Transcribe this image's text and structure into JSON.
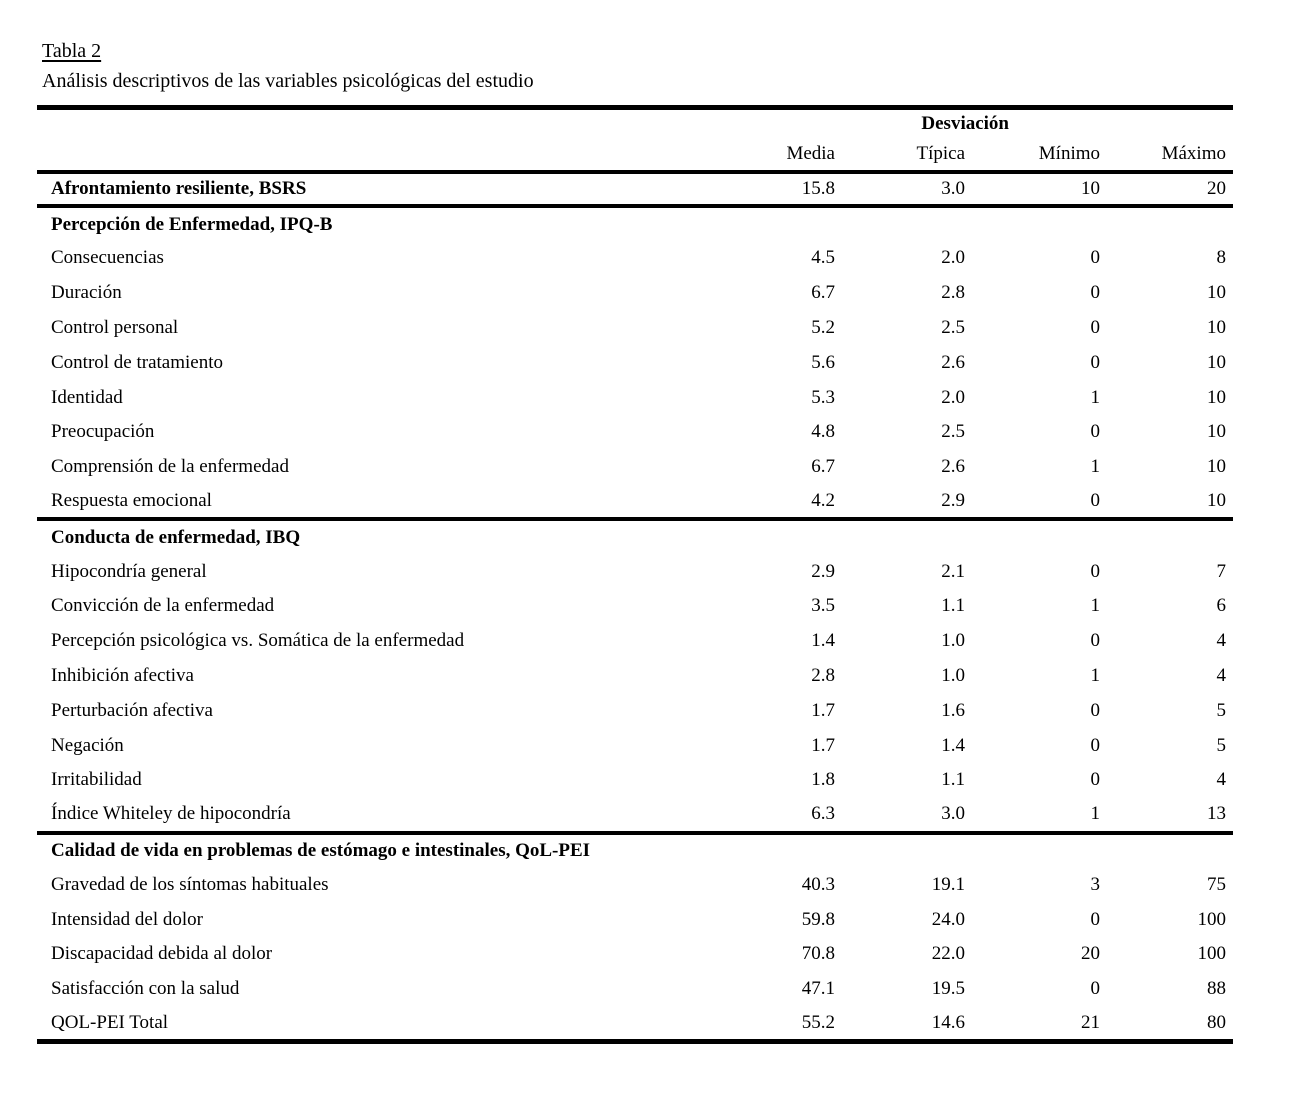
{
  "page": {
    "title": "Tabla 2",
    "subtitle": "Análisis descriptivos de las variables psicológicas del estudio"
  },
  "colors": {
    "text": "#000000",
    "background": "#ffffff",
    "rule": "#000000"
  },
  "table": {
    "col_group_header": "Desviación",
    "columns": [
      "Media",
      "Típica",
      "Mínimo",
      "Máximo"
    ],
    "rows": [
      {
        "label": "Afrontamiento resiliente, BSRS",
        "bold": true,
        "rule_above": false,
        "values": [
          "15.8",
          "3.0",
          "10",
          "20"
        ]
      },
      {
        "label": "Percepción de Enfermedad, IPQ-B",
        "bold": true,
        "rule_above": true,
        "values": []
      },
      {
        "label": "Consecuencias",
        "bold": false,
        "rule_above": false,
        "values": [
          "4.5",
          "2.0",
          "0",
          "8"
        ]
      },
      {
        "label": "Duración",
        "bold": false,
        "rule_above": false,
        "values": [
          "6.7",
          "2.8",
          "0",
          "10"
        ]
      },
      {
        "label": "Control personal",
        "bold": false,
        "rule_above": false,
        "values": [
          "5.2",
          "2.5",
          "0",
          "10"
        ]
      },
      {
        "label": "Control de tratamiento",
        "bold": false,
        "rule_above": false,
        "values": [
          "5.6",
          "2.6",
          "0",
          "10"
        ]
      },
      {
        "label": "Identidad",
        "bold": false,
        "rule_above": false,
        "values": [
          "5.3",
          "2.0",
          "1",
          "10"
        ]
      },
      {
        "label": "Preocupación",
        "bold": false,
        "rule_above": false,
        "values": [
          "4.8",
          "2.5",
          "0",
          "10"
        ]
      },
      {
        "label": "Comprensión de la enfermedad",
        "bold": false,
        "rule_above": false,
        "values": [
          "6.7",
          "2.6",
          "1",
          "10"
        ]
      },
      {
        "label": "Respuesta emocional",
        "bold": false,
        "rule_above": false,
        "values": [
          "4.2",
          "2.9",
          "0",
          "10"
        ]
      },
      {
        "label": "Conducta de enfermedad, IBQ",
        "bold": true,
        "rule_above": true,
        "values": []
      },
      {
        "label": "Hipocondría general",
        "bold": false,
        "rule_above": false,
        "values": [
          "2.9",
          "2.1",
          "0",
          "7"
        ]
      },
      {
        "label": "Convicción de la enfermedad",
        "bold": false,
        "rule_above": false,
        "values": [
          "3.5",
          "1.1",
          "1",
          "6"
        ]
      },
      {
        "label": "Percepción psicológica vs. Somática de la enfermedad",
        "bold": false,
        "rule_above": false,
        "values": [
          "1.4",
          "1.0",
          "0",
          "4"
        ]
      },
      {
        "label": "Inhibición afectiva",
        "bold": false,
        "rule_above": false,
        "values": [
          "2.8",
          "1.0",
          "1",
          "4"
        ]
      },
      {
        "label": "Perturbación afectiva",
        "bold": false,
        "rule_above": false,
        "values": [
          "1.7",
          "1.6",
          "0",
          "5"
        ]
      },
      {
        "label": "Negación",
        "bold": false,
        "rule_above": false,
        "values": [
          "1.7",
          "1.4",
          "0",
          "5"
        ]
      },
      {
        "label": "Irritabilidad",
        "bold": false,
        "rule_above": false,
        "values": [
          "1.8",
          "1.1",
          "0",
          "4"
        ]
      },
      {
        "label": "Índice Whiteley de hipocondría",
        "bold": false,
        "rule_above": false,
        "values": [
          "6.3",
          "3.0",
          "1",
          "13"
        ]
      },
      {
        "label": "Calidad de vida en problemas de estómago e intestinales, QoL-PEI",
        "bold": true,
        "rule_above": true,
        "values": []
      },
      {
        "label": "Gravedad de los síntomas habituales",
        "bold": false,
        "rule_above": false,
        "values": [
          "40.3",
          "19.1",
          "3",
          "75"
        ]
      },
      {
        "label": "Intensidad del dolor",
        "bold": false,
        "rule_above": false,
        "values": [
          "59.8",
          "24.0",
          "0",
          "100"
        ]
      },
      {
        "label": "Discapacidad debida al dolor",
        "bold": false,
        "rule_above": false,
        "values": [
          "70.8",
          "22.0",
          "20",
          "100"
        ]
      },
      {
        "label": "Satisfacción con la salud",
        "bold": false,
        "rule_above": false,
        "values": [
          "47.1",
          "19.5",
          "0",
          "88"
        ]
      },
      {
        "label": "QOL-PEI Total",
        "bold": false,
        "rule_above": false,
        "values": [
          "55.2",
          "14.6",
          "21",
          "80"
        ]
      }
    ]
  }
}
